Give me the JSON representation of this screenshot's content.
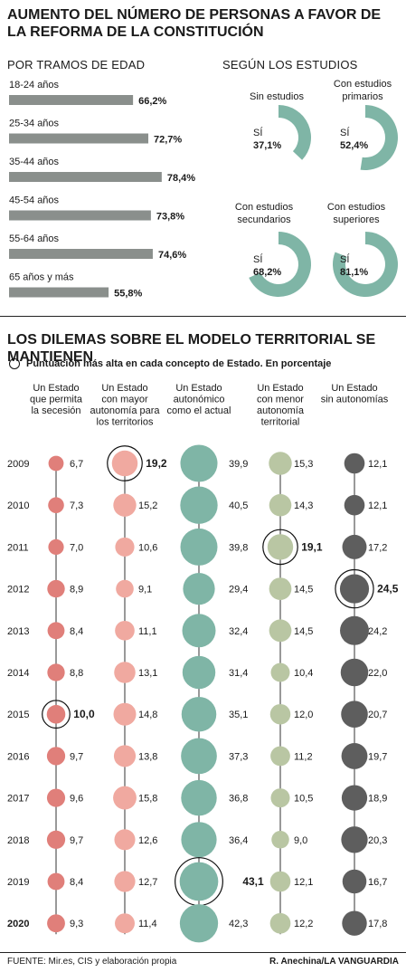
{
  "header": {
    "title": "AUMENTO DEL NÚMERO DE PERSONAS A FAVOR DE LA REFORMA DE LA CONSTITUCIÓN",
    "age_subtitle": "POR TRAMOS DE EDAD",
    "edu_subtitle": "SEGÚN LOS ESTUDIOS"
  },
  "section2": {
    "title": "LOS DILEMAS SOBRE EL MODELO TERRITORIAL SE MANTIENEN",
    "legend": "Puntuación más alta en cada concepto de Estado. En porcentaje"
  },
  "footer": {
    "source": "FUENTE: Mir.es, CIS y elaboración propia",
    "credit": "R. Anechina/LA VANGUARDIA"
  },
  "colors": {
    "teal": "#7fb5a6",
    "bar_gray": "#8a8a8a",
    "pink": "#e88c87",
    "salmon": "#f0a9a0",
    "olive": "#b8c4a0",
    "dark": "#5a5a5a",
    "track": "#d6e6e0"
  },
  "chart_data": [
    {
      "type": "bar",
      "title": "POR TRAMOS DE EDAD",
      "categories": [
        "18-24 años",
        "25-34 años",
        "35-44 años",
        "45-54 años",
        "55-64 años",
        "65 años y más"
      ],
      "values": [
        66.2,
        72.7,
        78.4,
        73.8,
        74.6,
        55.8
      ],
      "value_labels": [
        "66,2%",
        "72,7%",
        "78,4%",
        "73,8%",
        "74,6%",
        "55,8%"
      ],
      "orientation": "horizontal"
    },
    {
      "type": "pie",
      "title": "SEGÚN LOS ESTUDIOS",
      "categories": [
        "Sin estudios",
        "Con estudios primarios",
        "Con estudios secundarios",
        "Con estudios superiores"
      ],
      "values": [
        37.1,
        52.4,
        68.2,
        81.1
      ],
      "value_labels": [
        "37,1%",
        "52,4%",
        "68,2%",
        "81,1%"
      ],
      "inner_label": "SÍ"
    },
    {
      "type": "scatter",
      "title": "LOS DILEMAS SOBRE EL MODELO TERRITORIAL SE MANTIENEN",
      "legend": "Puntuación más alta en cada concepto de Estado. En porcentaje",
      "years": [
        "2009",
        "2010",
        "2011",
        "2012",
        "2013",
        "2014",
        "2015",
        "2016",
        "2017",
        "2018",
        "2019",
        "2020"
      ],
      "series": [
        {
          "name": "Un Estado que permita la secesión",
          "values": [
            6.7,
            7.3,
            7.0,
            8.9,
            8.4,
            8.8,
            10.0,
            9.7,
            9.6,
            9.7,
            8.4,
            9.3
          ],
          "labels": [
            "6,7",
            "7,3",
            "7,0",
            "8,9",
            "8,4",
            "8,8",
            "10,0",
            "9,7",
            "9,6",
            "9,7",
            "8,4",
            "9,3"
          ],
          "max_index": 6
        },
        {
          "name": "Un Estado con mayor autonomía para los territorios",
          "values": [
            19.2,
            15.2,
            10.6,
            9.1,
            11.1,
            13.1,
            14.8,
            13.8,
            15.8,
            12.6,
            12.7,
            11.4
          ],
          "labels": [
            "19,2",
            "15,2",
            "10,6",
            "9,1",
            "11,1",
            "13,1",
            "14,8",
            "13,8",
            "15,8",
            "12,6",
            "12,7",
            "11,4"
          ],
          "max_index": 0
        },
        {
          "name": "Un Estado autonómico como el actual",
          "values": [
            39.9,
            40.5,
            39.8,
            29.4,
            32.4,
            31.4,
            35.1,
            37.3,
            36.8,
            36.4,
            43.1,
            42.3
          ],
          "labels": [
            "39,9",
            "40,5",
            "39,8",
            "29,4",
            "32,4",
            "31,4",
            "35,1",
            "37,3",
            "36,8",
            "36,4",
            "43,1",
            "42,3"
          ],
          "max_index": 10
        },
        {
          "name": "Un Estado con menor autonomía territorial",
          "values": [
            15.3,
            14.3,
            19.1,
            14.5,
            14.5,
            10.4,
            12.0,
            11.2,
            10.5,
            9.0,
            12.1,
            12.2
          ],
          "labels": [
            "15,3",
            "14,3",
            "19,1",
            "14,5",
            "14,5",
            "10,4",
            "12,0",
            "11,2",
            "10,5",
            "9,0",
            "12,1",
            "12,2"
          ],
          "max_index": 2
        },
        {
          "name": "Un Estado sin autonomías",
          "values": [
            12.1,
            12.1,
            17.2,
            24.5,
            24.2,
            22.0,
            20.7,
            19.7,
            18.9,
            20.3,
            16.7,
            17.8
          ],
          "labels": [
            "12,1",
            "12,1",
            "17,2",
            "24,5",
            "24,2",
            "22,0",
            "20,7",
            "19,7",
            "18,9",
            "20,3",
            "16,7",
            "17,8"
          ],
          "max_index": 3
        }
      ],
      "column_headers": [
        [
          "Un Estado",
          "que permita",
          "la secesión"
        ],
        [
          "Un Estado",
          "con mayor",
          "autonomía para",
          "los territorios"
        ],
        [
          "Un Estado",
          "autonómico",
          "como el actual"
        ],
        [
          "Un Estado",
          "con menor",
          "autonomía",
          "territorial"
        ],
        [
          "Un Estado",
          "sin autonomías"
        ]
      ],
      "column_colors": [
        "#e07f7a",
        "#f0a9a0",
        "#7fb5a6",
        "#b9c6a3",
        "#5e5e5e"
      ]
    }
  ]
}
